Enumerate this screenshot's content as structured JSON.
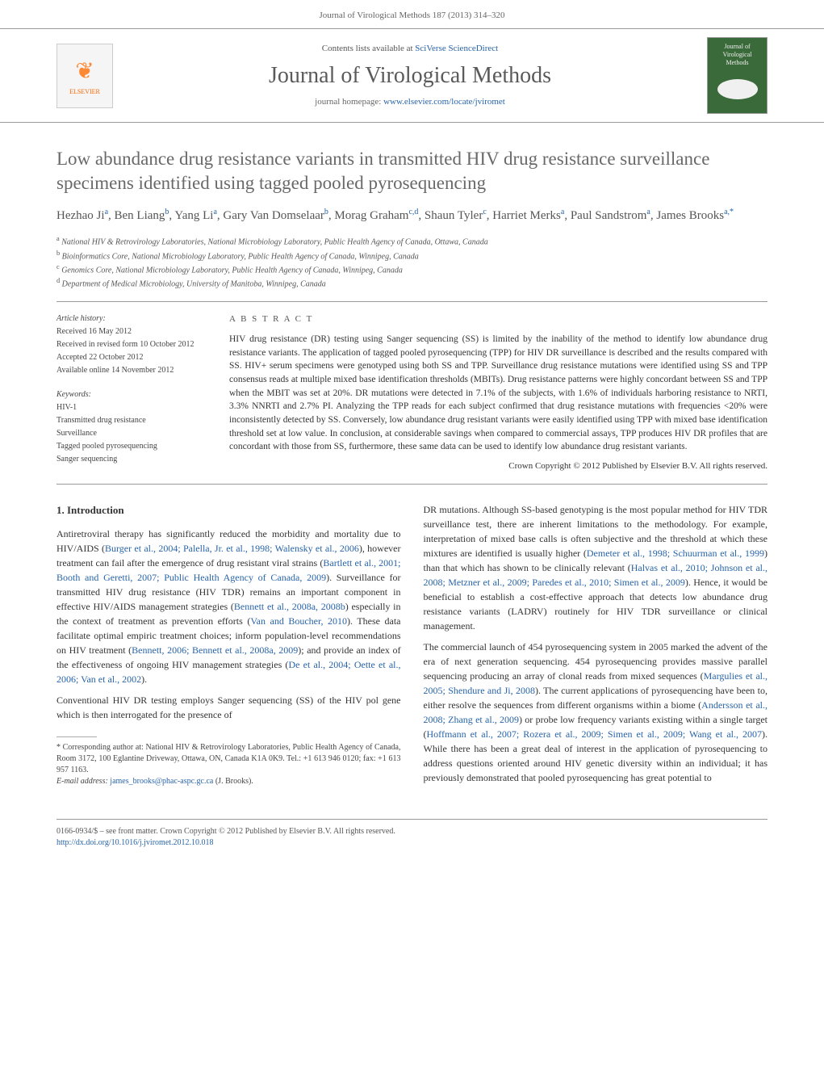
{
  "page_header": "Journal of Virological Methods 187 (2013) 314–320",
  "masthead": {
    "contents_prefix": "Contents lists available at ",
    "contents_link": "SciVerse ScienceDirect",
    "journal_name": "Journal of Virological Methods",
    "homepage_prefix": "journal homepage: ",
    "homepage_url": "www.elsevier.com/locate/jviromet",
    "publisher_name": "ELSEVIER",
    "cover_title": "Journal of Virological Methods"
  },
  "article": {
    "title": "Low abundance drug resistance variants in transmitted HIV drug resistance surveillance specimens identified using tagged pooled pyrosequencing",
    "authors_html": "Hezhao Ji<sup>a</sup>, Ben Liang<sup>b</sup>, Yang Li<sup>a</sup>, Gary Van Domselaar<sup>b</sup>, Morag Graham<sup>c,d</sup>, Shaun Tyler<sup>c</sup>, Harriet Merks<sup>a</sup>, Paul Sandstrom<sup>a</sup>, James Brooks<sup>a,*</sup>",
    "affiliations": [
      "a National HIV & Retrovirology Laboratories, National Microbiology Laboratory, Public Health Agency of Canada, Ottawa, Canada",
      "b Bioinformatics Core, National Microbiology Laboratory, Public Health Agency of Canada, Winnipeg, Canada",
      "c Genomics Core, National Microbiology Laboratory, Public Health Agency of Canada, Winnipeg, Canada",
      "d Department of Medical Microbiology, University of Manitoba, Winnipeg, Canada"
    ]
  },
  "history": {
    "label": "Article history:",
    "items": [
      "Received 16 May 2012",
      "Received in revised form 10 October 2012",
      "Accepted 22 October 2012",
      "Available online 14 November 2012"
    ],
    "kw_label": "Keywords:",
    "keywords": [
      "HIV-1",
      "Transmitted drug resistance",
      "Surveillance",
      "Tagged pooled pyrosequencing",
      "Sanger sequencing"
    ]
  },
  "abstract": {
    "label": "A B S T R A C T",
    "text": "HIV drug resistance (DR) testing using Sanger sequencing (SS) is limited by the inability of the method to identify low abundance drug resistance variants. The application of tagged pooled pyrosequencing (TPP) for HIV DR surveillance is described and the results compared with SS. HIV+ serum specimens were genotyped using both SS and TPP. Surveillance drug resistance mutations were identified using SS and TPP consensus reads at multiple mixed base identification thresholds (MBITs). Drug resistance patterns were highly concordant between SS and TPP when the MBIT was set at 20%. DR mutations were detected in 7.1% of the subjects, with 1.6% of individuals harboring resistance to NRTI, 3.3% NNRTI and 2.7% PI. Analyzing the TPP reads for each subject confirmed that drug resistance mutations with frequencies <20% were inconsistently detected by SS. Conversely, low abundance drug resistant variants were easily identified using TPP with mixed base identification threshold set at low value. In conclusion, at considerable savings when compared to commercial assays, TPP produces HIV DR profiles that are concordant with those from SS, furthermore, these same data can be used to identify low abundance drug resistant variants.",
    "copyright": "Crown Copyright © 2012 Published by Elsevier B.V. All rights reserved."
  },
  "intro": {
    "heading": "1. Introduction",
    "p1_a": "Antiretroviral therapy has significantly reduced the morbidity and mortality due to HIV/AIDS (",
    "p1_ref1": "Burger et al., 2004; Palella, Jr. et al., 1998; Walensky et al., 2006",
    "p1_b": "), however treatment can fail after the emergence of drug resistant viral strains (",
    "p1_ref2": "Bartlett et al., 2001; Booth and Geretti, 2007; Public Health Agency of Canada, 2009",
    "p1_c": "). Surveillance for transmitted HIV drug resistance (HIV TDR) remains an important component in effective HIV/AIDS management strategies (",
    "p1_ref3": "Bennett et al., 2008a, 2008b",
    "p1_d": ") especially in the context of treatment as prevention efforts (",
    "p1_ref4": "Van and Boucher, 2010",
    "p1_e": "). These data facilitate optimal empiric treatment choices; inform population-level recommendations on HIV treatment (",
    "p1_ref5": "Bennett, 2006; Bennett et al., 2008a, 2009",
    "p1_f": "); and provide an index of the effectiveness of ongoing HIV management strategies (",
    "p1_ref6": "De et al., 2004; Oette et al., 2006; Van et al., 2002",
    "p1_g": ").",
    "p2": "Conventional HIV DR testing employs Sanger sequencing (SS) of the HIV pol gene which is then interrogated for the presence of",
    "p3_a": "DR mutations. Although SS-based genotyping is the most popular method for HIV TDR surveillance test, there are inherent limitations to the methodology. For example, interpretation of mixed base calls is often subjective and the threshold at which these mixtures are identified is usually higher (",
    "p3_ref1": "Demeter et al., 1998; Schuurman et al., 1999",
    "p3_b": ") than that which has shown to be clinically relevant (",
    "p3_ref2": "Halvas et al., 2010; Johnson et al., 2008; Metzner et al., 2009; Paredes et al., 2010; Simen et al., 2009",
    "p3_c": "). Hence, it would be beneficial to establish a cost-effective approach that detects low abundance drug resistance variants (LADRV) routinely for HIV TDR surveillance or clinical management.",
    "p4_a": "The commercial launch of 454 pyrosequencing system in 2005 marked the advent of the era of next generation sequencing. 454 pyrosequencing provides massive parallel sequencing producing an array of clonal reads from mixed sequences (",
    "p4_ref1": "Margulies et al., 2005; Shendure and Ji, 2008",
    "p4_b": "). The current applications of pyrosequencing have been to, either resolve the sequences from different organisms within a biome (",
    "p4_ref2": "Andersson et al., 2008; Zhang et al., 2009",
    "p4_c": ") or probe low frequency variants existing within a single target (",
    "p4_ref3": "Hoffmann et al., 2007; Rozera et al., 2009; Simen et al., 2009; Wang et al., 2007",
    "p4_d": "). While there has been a great deal of interest in the application of pyrosequencing to address questions oriented around HIV genetic diversity within an individual; it has previously demonstrated that pooled pyrosequencing has great potential to"
  },
  "footnote": {
    "corr_label": "* Corresponding author at:",
    "corr_text": " National HIV & Retrovirology Laboratories, Public Health Agency of Canada, Room 3172, 100 Eglantine Driveway, Ottawa, ON, Canada K1A 0K9. Tel.: +1 613 946 0120; fax: +1 613 957 1163.",
    "email_label": "E-mail address: ",
    "email": "james_brooks@phac-aspc.gc.ca",
    "email_suffix": " (J. Brooks)."
  },
  "footer": {
    "line1": "0166-0934/$ – see front matter. Crown Copyright © 2012 Published by Elsevier B.V. All rights reserved.",
    "doi": "http://dx.doi.org/10.1016/j.jviromet.2012.10.018"
  },
  "colors": {
    "link": "#2864a8",
    "heading_gray": "#696969",
    "rule": "#999999",
    "cover_green": "#3a6a3a",
    "publisher_orange": "#ff6600"
  }
}
